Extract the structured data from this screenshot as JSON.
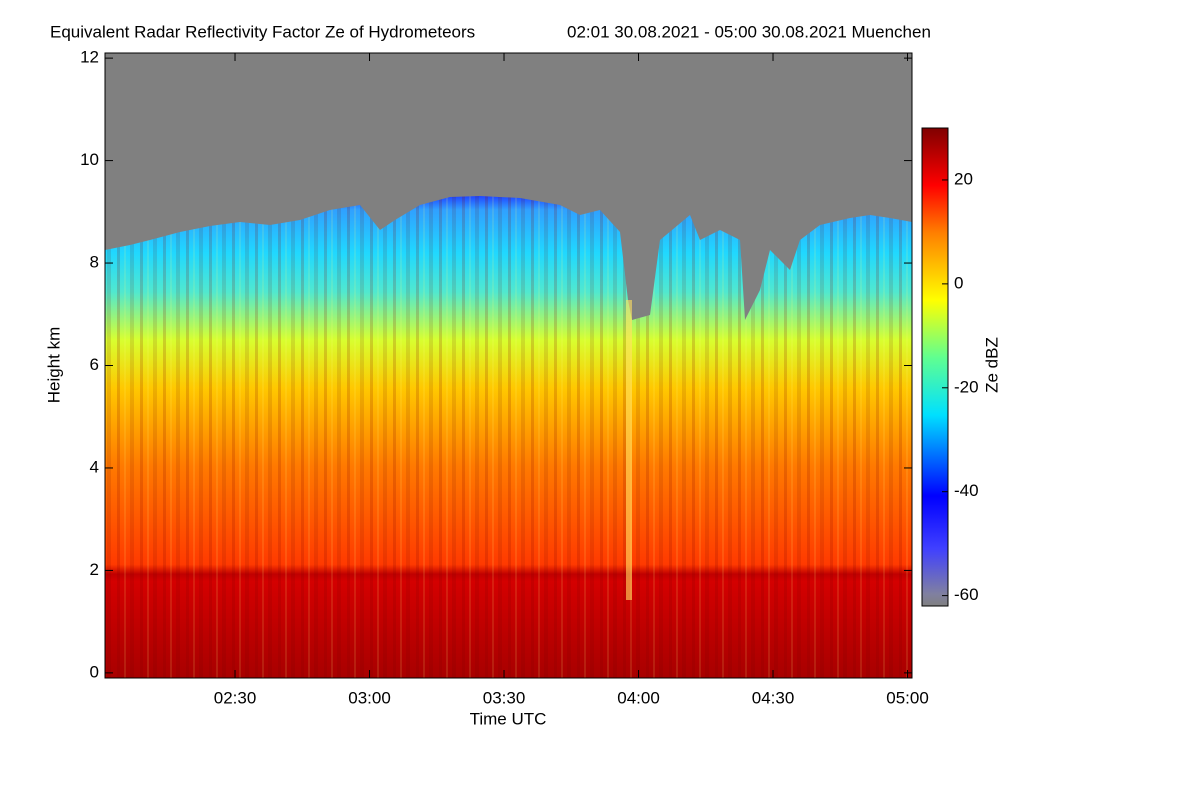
{
  "chart_data": {
    "type": "heatmap",
    "title": "Equivalent Radar Reflectivity Factor Ze of Hydrometeors",
    "subtitle": "02:01 30.08.2021 - 05:00 30.08.2021 Muenchen",
    "x_label": "Time UTC",
    "y_label": "Height km",
    "colorbar_label": "Ze dBZ",
    "xlim": [
      121,
      301
    ],
    "xticks": [
      {
        "value": 150,
        "label": "02:30"
      },
      {
        "value": 180,
        "label": "03:00"
      },
      {
        "value": 210,
        "label": "03:30"
      },
      {
        "value": 240,
        "label": "04:00"
      },
      {
        "value": 270,
        "label": "04:30"
      },
      {
        "value": 300,
        "label": "05:00"
      }
    ],
    "ylim": [
      -0.1,
      12.1
    ],
    "yticks": [
      0,
      2,
      4,
      6,
      8,
      10,
      12
    ],
    "clim": [
      -62,
      30
    ],
    "cticks": [
      20,
      0,
      -20,
      -40,
      -60
    ]
  }
}
